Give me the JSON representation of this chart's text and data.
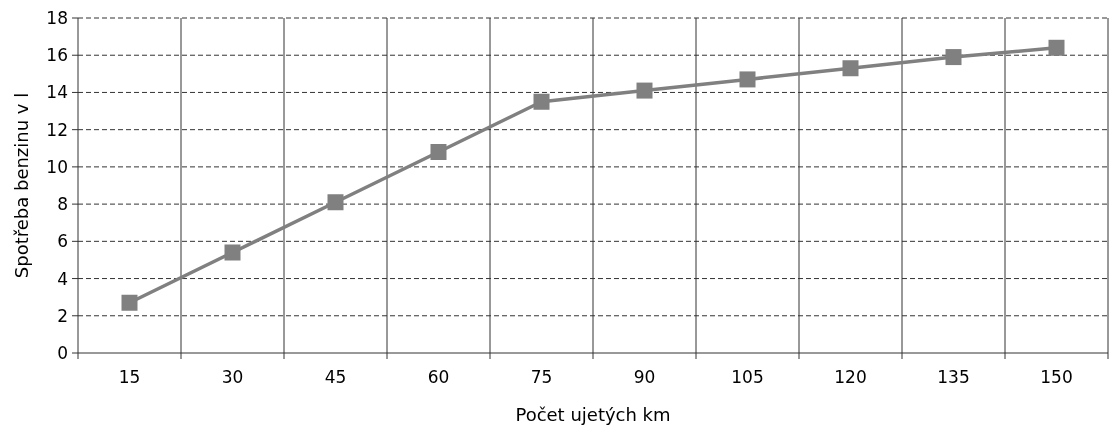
{
  "chart_data": {
    "type": "line",
    "xlabel": "Počet ujetých km",
    "ylabel": "Spotřeba benzinu v l",
    "categories": [
      "15",
      "30",
      "45",
      "60",
      "75",
      "90",
      "105",
      "120",
      "135",
      "150"
    ],
    "series": [
      {
        "color": "#808080",
        "values": [
          2.7,
          5.4,
          8.1,
          10.8,
          13.5,
          14.1,
          14.7,
          15.3,
          15.9,
          16.4
        ]
      }
    ],
    "ylim": [
      0,
      18
    ],
    "yticks": [
      0,
      2,
      4,
      6,
      8,
      10,
      12,
      14,
      16,
      18
    ],
    "grid": true,
    "marker": "square",
    "line_style": "solid"
  }
}
